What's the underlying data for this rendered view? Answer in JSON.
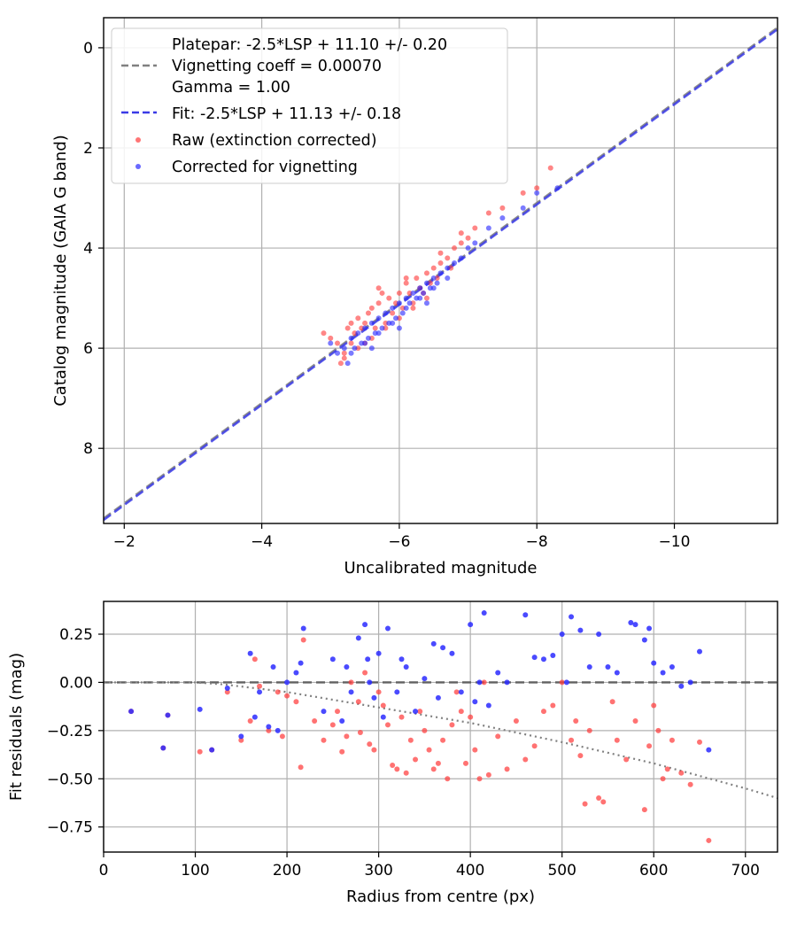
{
  "chart_data": [
    {
      "type": "scatter",
      "xlabel": "Uncalibrated magnitude",
      "ylabel": "Catalog magnitude (GAIA G band)",
      "xlim": [
        -1.7,
        -11.5
      ],
      "ylim": [
        9.5,
        -0.6
      ],
      "x_inverted": true,
      "y_inverted": true,
      "xticks": [
        -2,
        -4,
        -6,
        -8,
        -10
      ],
      "xtick_labels": [
        "−2",
        "−4",
        "−6",
        "−8",
        "−10"
      ],
      "yticks": [
        0,
        2,
        4,
        6,
        8
      ],
      "ytick_labels": [
        "0",
        "2",
        "4",
        "6",
        "8"
      ],
      "grid": true,
      "legend_position": "top-left",
      "lines": [
        {
          "name": "Platepar: -2.5*LSP + 11.10 +/- 0.20\nVignetting coeff = 0.00070\nGamma = 1.00",
          "slope": 1,
          "intercept": 11.1,
          "style": "dashed",
          "color": "#808080"
        },
        {
          "name": "Fit: -2.5*LSP + 11.13 +/- 0.18",
          "slope": 1,
          "intercept": 11.13,
          "style": "dashed",
          "color": "#3a3ae6"
        }
      ],
      "series": [
        {
          "name": "Raw (extinction corrected)",
          "color": "#ff3b3b",
          "x": [
            -4.9,
            -5.0,
            -5.1,
            -5.15,
            -5.2,
            -5.25,
            -5.3,
            -5.3,
            -5.35,
            -5.4,
            -5.45,
            -5.5,
            -5.5,
            -5.55,
            -5.6,
            -5.65,
            -5.7,
            -5.75,
            -5.8,
            -5.85,
            -5.9,
            -5.95,
            -6.0,
            -6.05,
            -6.1,
            -6.15,
            -6.2,
            -6.25,
            -6.3,
            -6.35,
            -6.4,
            -6.45,
            -6.5,
            -6.55,
            -6.6,
            -6.7,
            -6.75,
            -6.8,
            -6.9,
            -7.0,
            -7.1,
            -7.3,
            -7.5,
            -7.8,
            -8.0,
            -8.2,
            -5.4,
            -5.6,
            -5.8,
            -6.0,
            -6.2,
            -6.4,
            -5.2,
            -5.7,
            -6.1,
            -6.6,
            -6.9
          ],
          "y": [
            5.7,
            5.8,
            5.9,
            6.3,
            6.1,
            5.6,
            5.5,
            5.9,
            5.7,
            5.4,
            5.6,
            5.5,
            5.9,
            5.3,
            5.2,
            5.6,
            5.1,
            4.9,
            5.5,
            5.0,
            5.3,
            5.1,
            4.9,
            5.2,
            4.7,
            4.9,
            5.1,
            4.6,
            4.8,
            4.9,
            4.5,
            4.7,
            4.4,
            4.6,
            4.3,
            4.2,
            4.4,
            4.0,
            3.9,
            3.8,
            3.6,
            3.3,
            3.2,
            2.9,
            2.8,
            2.4,
            6.0,
            5.8,
            5.6,
            5.4,
            5.2,
            5.0,
            6.2,
            4.8,
            4.6,
            4.1,
            3.7
          ]
        },
        {
          "name": "Corrected for vignetting",
          "color": "#2a2aff",
          "x": [
            -5.0,
            -5.1,
            -5.2,
            -5.25,
            -5.3,
            -5.35,
            -5.4,
            -5.45,
            -5.5,
            -5.55,
            -5.6,
            -5.65,
            -5.7,
            -5.75,
            -5.8,
            -5.85,
            -5.9,
            -5.95,
            -6.0,
            -6.05,
            -6.1,
            -6.15,
            -6.2,
            -6.25,
            -6.3,
            -6.35,
            -6.4,
            -6.45,
            -6.5,
            -6.55,
            -6.6,
            -6.7,
            -6.8,
            -6.9,
            -7.0,
            -7.1,
            -7.3,
            -7.5,
            -7.8,
            -8.0,
            -8.3,
            -5.3,
            -5.5,
            -5.7,
            -5.9,
            -6.1,
            -6.3,
            -6.5,
            -6.7,
            -5.6,
            -6.0,
            -6.4
          ],
          "y": [
            5.9,
            6.1,
            6.0,
            6.3,
            5.8,
            6.0,
            5.7,
            5.9,
            5.6,
            5.8,
            5.5,
            5.7,
            5.4,
            5.6,
            5.3,
            5.5,
            5.2,
            5.4,
            5.1,
            5.3,
            5.0,
            5.1,
            4.9,
            5.0,
            4.8,
            4.9,
            4.7,
            4.8,
            4.6,
            4.7,
            4.5,
            4.4,
            4.3,
            4.2,
            4.0,
            3.9,
            3.6,
            3.4,
            3.2,
            2.9,
            2.8,
            6.1,
            5.9,
            5.7,
            5.5,
            5.2,
            5.0,
            4.8,
            4.6,
            6.0,
            5.6,
            5.1
          ]
        }
      ]
    },
    {
      "type": "scatter",
      "xlabel": "Radius from centre (px)",
      "ylabel": "Fit residuals (mag)",
      "xlim": [
        0,
        735
      ],
      "ylim": [
        -0.88,
        0.42
      ],
      "xticks": [
        0,
        100,
        200,
        300,
        400,
        500,
        600,
        700
      ],
      "xtick_labels": [
        "0",
        "100",
        "200",
        "300",
        "400",
        "500",
        "600",
        "700"
      ],
      "yticks": [
        0.25,
        0.0,
        -0.25,
        -0.5,
        -0.75
      ],
      "ytick_labels": [
        "0.25",
        "0.00",
        "−0.25",
        "−0.50",
        "−0.75"
      ],
      "grid": true,
      "reference_line": {
        "y": 0.0,
        "style": "dashed",
        "color": "#606060"
      },
      "vignetting_curve": {
        "style": "dotted",
        "color": "#808080",
        "x": [
          0,
          50,
          100,
          130,
          200,
          300,
          400,
          500,
          600,
          700,
          735
        ],
        "y": [
          0.0,
          0.0,
          0.0,
          -0.01,
          -0.05,
          -0.13,
          -0.21,
          -0.31,
          -0.42,
          -0.55,
          -0.6
        ]
      },
      "series": [
        {
          "name": "Raw (extinction corrected)",
          "color": "#ff3b3b",
          "x": [
            30,
            65,
            70,
            105,
            118,
            135,
            150,
            160,
            165,
            170,
            180,
            190,
            195,
            200,
            210,
            215,
            218,
            230,
            240,
            250,
            255,
            260,
            265,
            270,
            278,
            280,
            285,
            290,
            295,
            300,
            305,
            310,
            315,
            320,
            325,
            330,
            335,
            340,
            345,
            350,
            355,
            360,
            365,
            370,
            375,
            380,
            385,
            390,
            395,
            400,
            405,
            410,
            415,
            420,
            430,
            440,
            450,
            460,
            470,
            480,
            490,
            500,
            510,
            515,
            520,
            525,
            530,
            540,
            545,
            555,
            560,
            570,
            580,
            590,
            595,
            600,
            605,
            610,
            615,
            620,
            630,
            640,
            650,
            660
          ],
          "y": [
            -0.15,
            -0.34,
            -0.17,
            -0.36,
            -0.35,
            -0.05,
            -0.3,
            -0.2,
            0.12,
            -0.02,
            -0.25,
            -0.05,
            -0.28,
            -0.07,
            -0.1,
            -0.44,
            0.22,
            -0.2,
            -0.3,
            -0.22,
            -0.15,
            -0.36,
            -0.28,
            0.0,
            -0.1,
            -0.26,
            0.05,
            -0.32,
            -0.35,
            -0.05,
            -0.12,
            -0.22,
            -0.43,
            -0.45,
            -0.18,
            -0.47,
            -0.3,
            -0.4,
            -0.15,
            -0.25,
            -0.35,
            -0.45,
            -0.42,
            -0.3,
            -0.5,
            -0.22,
            -0.05,
            -0.15,
            -0.42,
            -0.18,
            -0.35,
            -0.5,
            0.0,
            -0.48,
            -0.28,
            -0.45,
            -0.2,
            -0.4,
            -0.33,
            -0.15,
            -0.12,
            0.0,
            -0.3,
            -0.2,
            -0.38,
            -0.63,
            -0.25,
            -0.6,
            -0.62,
            -0.1,
            -0.3,
            -0.4,
            -0.2,
            -0.66,
            -0.33,
            -0.12,
            -0.25,
            -0.5,
            -0.45,
            -0.3,
            -0.47,
            -0.53,
            -0.31,
            -0.82
          ]
        },
        {
          "name": "Corrected for vignetting",
          "color": "#2a2aff",
          "x": [
            30,
            65,
            70,
            105,
            118,
            135,
            150,
            160,
            165,
            170,
            180,
            185,
            190,
            200,
            210,
            215,
            218,
            240,
            250,
            260,
            265,
            270,
            278,
            285,
            288,
            290,
            295,
            300,
            305,
            310,
            320,
            325,
            330,
            340,
            350,
            360,
            365,
            370,
            380,
            390,
            400,
            405,
            410,
            415,
            420,
            430,
            440,
            460,
            470,
            480,
            490,
            500,
            505,
            510,
            520,
            530,
            540,
            550,
            560,
            575,
            580,
            590,
            595,
            600,
            610,
            620,
            630,
            640,
            650,
            660
          ],
          "y": [
            -0.15,
            -0.34,
            -0.17,
            -0.14,
            -0.35,
            -0.03,
            -0.28,
            0.15,
            -0.18,
            -0.05,
            -0.23,
            0.08,
            -0.25,
            0.0,
            0.05,
            0.1,
            0.28,
            -0.15,
            0.12,
            -0.2,
            0.08,
            -0.05,
            0.23,
            0.3,
            0.12,
            0.0,
            -0.08,
            0.15,
            -0.18,
            0.28,
            -0.05,
            0.12,
            0.08,
            -0.15,
            0.02,
            0.2,
            -0.08,
            0.18,
            0.15,
            -0.05,
            0.3,
            -0.1,
            0.0,
            0.36,
            -0.12,
            0.05,
            0.0,
            0.35,
            0.13,
            0.12,
            0.14,
            0.25,
            0.0,
            0.34,
            0.27,
            0.08,
            0.25,
            0.08,
            0.05,
            0.31,
            0.3,
            0.22,
            0.28,
            0.1,
            0.05,
            0.08,
            -0.02,
            0.0,
            0.16,
            -0.35
          ]
        }
      ]
    }
  ]
}
